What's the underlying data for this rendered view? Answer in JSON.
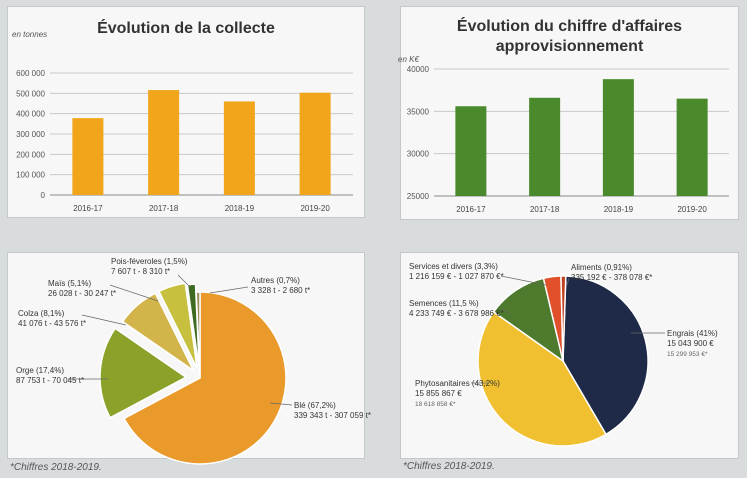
{
  "footnote_left": "*Chiffres 2018-2019.",
  "footnote_right": "*Chiffres 2018-2019.",
  "chart_data": [
    {
      "type": "bar",
      "title": "Évolution de la collecte",
      "ylabel": "en tonnes",
      "categories": [
        "2016-17",
        "2017-18",
        "2018-19",
        "2019-20"
      ],
      "values": [
        378000,
        516000,
        460000,
        503000
      ],
      "ylim": [
        0,
        600000
      ],
      "yticks": [
        "0",
        "100 000",
        "200 000",
        "300 000",
        "400 000",
        "500 000",
        "600 000"
      ],
      "color": "#f0a51a",
      "grid": true
    },
    {
      "type": "bar",
      "title_line1": "Évolution du chiffre d'affaires",
      "title_line2": "approvisionnement",
      "ylabel": "en K€",
      "categories": [
        "2016-17",
        "2017-18",
        "2018-19",
        "2019-20"
      ],
      "values": [
        35600,
        36600,
        38800,
        36500
      ],
      "ylim": [
        25000,
        40000
      ],
      "yticks": [
        "25000",
        "30000",
        "35000",
        "40000"
      ],
      "color": "#4a8a2c",
      "grid": true
    },
    {
      "type": "pie",
      "slices": [
        {
          "name": "Blé",
          "pct": "(67,2%)",
          "value": 67.2,
          "l1": "339 343 t",
          "l2": "- 307 059 t*",
          "color": "#e99a2a"
        },
        {
          "name": "Orge",
          "pct": "(17,4%)",
          "value": 17.4,
          "l1": "87 753 t",
          "l2": "- 70 045 t*",
          "color": "#8aa22a"
        },
        {
          "name": "Colza",
          "pct": "(8,1%)",
          "value": 8.1,
          "l1": "41 076 t",
          "l2": "- 43 576 t*",
          "color": "#d2b44a"
        },
        {
          "name": "Maïs",
          "pct": "(5,1%)",
          "value": 5.1,
          "l1": "26 028 t",
          "l2": "- 30 247 t*",
          "color": "#c6c03e"
        },
        {
          "name": "Pois-féveroles",
          "pct": "(1,5%)",
          "value": 1.5,
          "l1": "7 607 t",
          "l2": "- 8 310 t*",
          "color": "#3e6a22"
        },
        {
          "name": "Autres",
          "pct": "(0,7%)",
          "value": 0.7,
          "l1": "3 328 t",
          "l2": "- 2 680 t*",
          "color": "#9a8a5a"
        }
      ]
    },
    {
      "type": "pie",
      "slices": [
        {
          "name": "Engrais",
          "pct": "(41%)",
          "value": 41,
          "l1": "15 043 900 €",
          "l2": "15 299 953 €*",
          "color": "#1e2a48"
        },
        {
          "name": "Phytosanitaires",
          "pct": "(43,2%)",
          "value": 43.2,
          "l1": "15 855 867 €",
          "l2": "18 618 858 €*",
          "color": "#f0c030"
        },
        {
          "name": "Semences",
          "pct": "(11,5 %)",
          "value": 11.5,
          "l1": "4 233 749 € - 3 678 986 €*",
          "l2": "",
          "color": "#4d7a2c"
        },
        {
          "name": "Services et divers",
          "pct": "(3,3%)",
          "value": 3.3,
          "l1": "1 216 159 € - 1 027 870 €*",
          "l2": "",
          "color": "#e0502a"
        },
        {
          "name": "Aliments",
          "pct": "(0,91%)",
          "value": 0.91,
          "l1": "335 192 € - 378 078 €*",
          "l2": "",
          "color": "#c04020"
        }
      ]
    }
  ]
}
